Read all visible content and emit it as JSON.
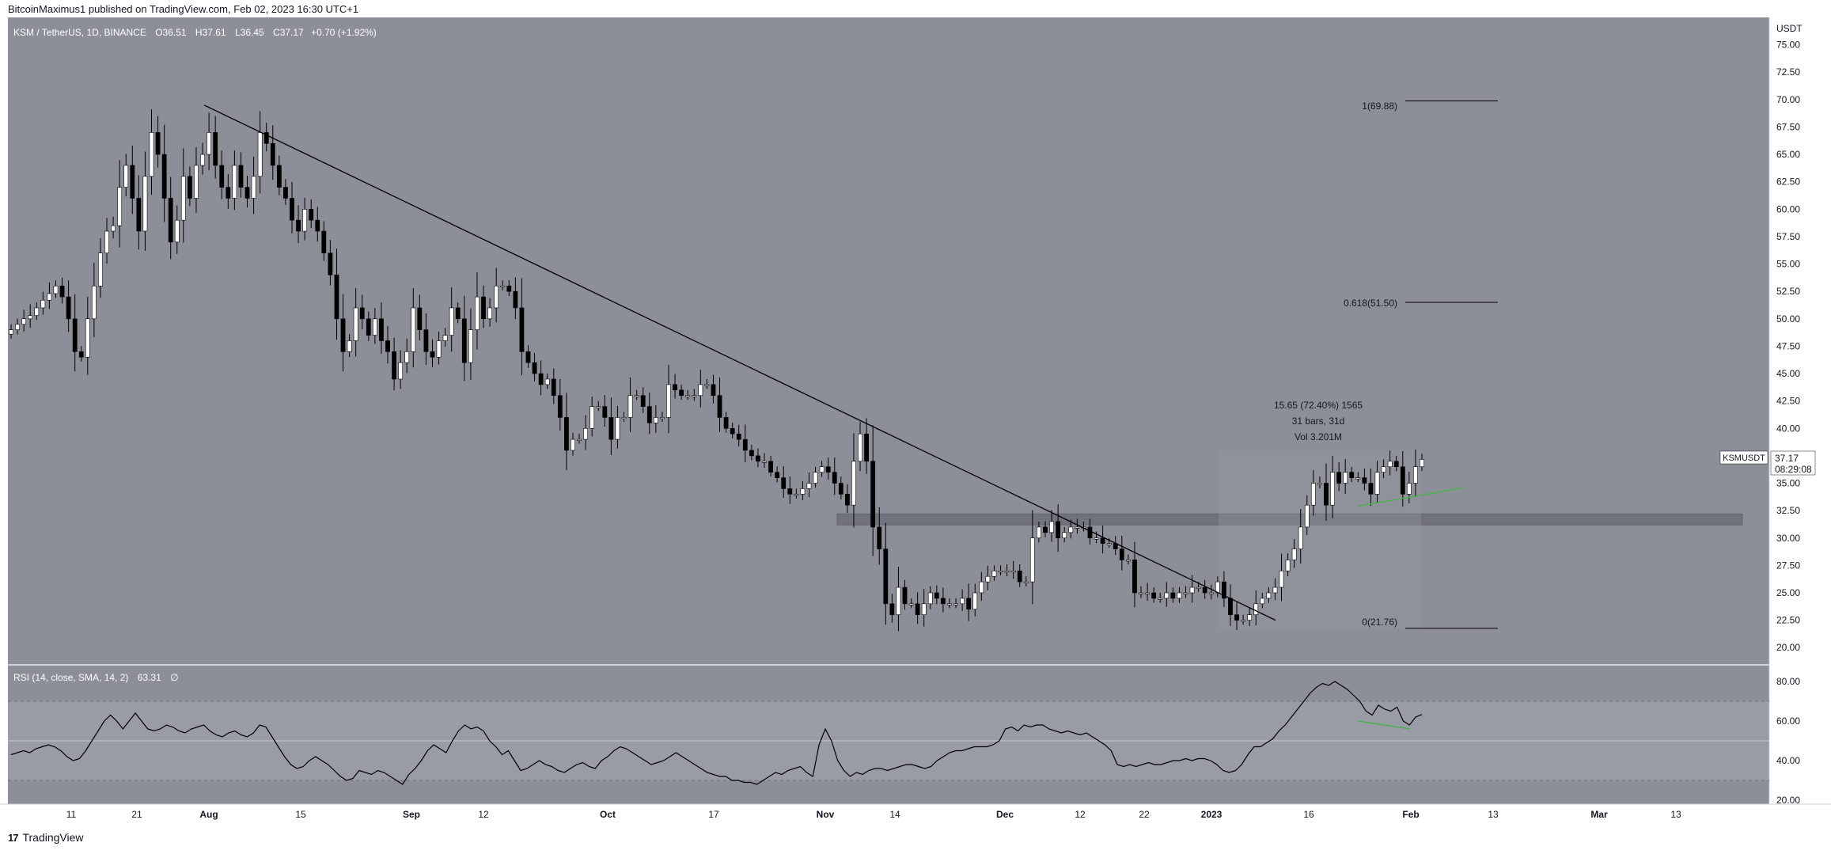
{
  "header": {
    "publisher": "BitcoinMaximus1 published on TradingView.com, Feb 02, 2023 16:30 UTC+1"
  },
  "legend": {
    "symbol": "KSM / TetherUS, 1D, BINANCE",
    "o_label": "O",
    "o": "36.51",
    "h_label": "H",
    "h": "37.61",
    "l_label": "L",
    "l": "36.45",
    "c_label": "C",
    "c": "37.17",
    "change": "+0.70 (+1.92%)"
  },
  "price_axis": {
    "currency": "USDT",
    "ticks": [
      "75.00",
      "72.50",
      "70.00",
      "67.50",
      "65.00",
      "62.50",
      "60.00",
      "57.50",
      "55.00",
      "52.50",
      "50.00",
      "47.50",
      "45.00",
      "42.50",
      "40.00",
      "35.00",
      "32.50",
      "30.00",
      "27.50",
      "25.00",
      "22.50",
      "20.00"
    ],
    "last_symbol": "KSMUSDT",
    "last_price": "37.17",
    "countdown": "08:29:08"
  },
  "rsi": {
    "label": "RSI (14, close, SMA, 14, 2)",
    "value": "63.31",
    "extra": "∅",
    "ticks": [
      "80.00",
      "60.00",
      "40.00",
      "20.00"
    ]
  },
  "time_axis": {
    "labels": [
      "11",
      "21",
      "Aug",
      "15",
      "Sep",
      "12",
      "Oct",
      "17",
      "Nov",
      "14",
      "Dec",
      "12",
      "22",
      "2023",
      "16",
      "Feb",
      "13",
      "Mar",
      "13"
    ]
  },
  "annotations": {
    "fib_1": "1(69.88)",
    "fib_0618": "0.618(51.50)",
    "fib_0": "0(21.76)",
    "measure_line1": "15.65 (72.40%) 1565",
    "measure_line2": "31 bars, 31d",
    "measure_line3": "Vol 3.201M"
  },
  "footer": {
    "brand": "TradingView",
    "mark": "17"
  },
  "colors": {
    "chart_bg": "#8d8f98",
    "rsi_band": "#9a9ca5",
    "candle_up": "#ffffff",
    "candle_down": "#000000",
    "divergence": "#4caf50"
  },
  "chart_data": {
    "type": "candlestick",
    "symbol": "KSM / TetherUS",
    "interval": "1D",
    "y_axis": {
      "ylim": [
        18.5,
        77.5
      ],
      "unit": "USDT"
    },
    "x_labels": [
      "11",
      "21",
      "Aug",
      "15",
      "Sep",
      "12",
      "Oct",
      "17",
      "Nov",
      "14",
      "Dec",
      "12",
      "22",
      "2023",
      "16",
      "Feb",
      "13",
      "Mar",
      "13"
    ],
    "close_series": [
      49,
      49.5,
      50,
      50.3,
      51,
      51.7,
      52.3,
      53,
      52,
      50,
      47,
      46.5,
      50,
      53,
      56,
      58,
      58.5,
      62,
      64,
      61,
      58,
      63,
      67,
      65,
      61,
      57,
      59,
      63,
      61,
      64,
      65,
      67,
      64,
      62,
      61,
      64,
      62,
      61,
      63,
      67,
      66,
      64,
      62,
      61,
      59,
      58,
      60,
      59,
      58,
      56,
      54,
      50,
      47,
      48,
      51,
      50,
      48.5,
      50,
      48,
      47,
      44.5,
      46,
      47,
      51,
      49,
      47,
      46.5,
      48,
      48.5,
      51,
      50,
      46,
      49,
      52,
      50,
      51,
      53,
      53,
      52.5,
      51,
      47,
      46,
      45,
      44,
      44.5,
      43,
      41,
      38,
      39,
      39,
      40,
      42,
      42,
      41,
      39,
      41,
      41,
      43,
      43,
      42,
      40.5,
      41,
      41,
      44,
      43.5,
      43,
      43,
      43,
      44,
      44,
      43,
      41,
      40,
      39.5,
      39,
      38,
      37.5,
      37,
      37,
      36,
      35.5,
      34.5,
      34,
      34,
      34.5,
      35,
      36,
      36.5,
      36,
      35,
      34,
      33,
      37,
      39.5,
      37,
      31,
      29,
      24,
      23,
      25.5,
      24,
      24,
      23,
      24,
      25,
      24.5,
      24,
      24,
      24,
      24.5,
      23.5,
      25,
      26,
      26.5,
      27,
      27,
      27,
      27,
      26,
      26,
      30,
      31,
      30.5,
      31.5,
      30,
      30.5,
      31,
      31,
      31,
      30,
      30,
      29.5,
      29.5,
      29,
      28,
      28,
      25,
      25,
      25,
      24.5,
      24.5,
      25,
      24.5,
      25,
      25,
      25.5,
      25.5,
      25,
      25,
      26,
      24.5,
      23,
      22.5,
      22.5,
      23,
      24,
      24.5,
      25,
      25.5,
      27,
      28,
      29,
      31,
      33,
      35,
      35,
      33,
      36,
      35,
      36,
      35.5,
      35.5,
      35,
      34,
      36,
      36.5,
      37,
      36.5,
      34,
      35,
      36.5,
      37.17
    ],
    "trendline": {
      "from": [
        69.5
      ],
      "to": [
        22.5
      ]
    },
    "horizontal_zone": [
      31.2,
      32.2
    ],
    "fibonacci": [
      {
        "level": "1",
        "value": 69.88
      },
      {
        "level": "0.618",
        "value": 51.5
      },
      {
        "level": "0",
        "value": 21.76
      }
    ],
    "measure": {
      "change": 15.65,
      "percent": 72.4,
      "bars": 31,
      "days": 31,
      "volume": "3.201M"
    },
    "rsi_series": [
      43,
      44,
      45,
      44,
      46,
      47,
      48,
      47,
      45,
      42,
      40,
      41,
      45,
      50,
      55,
      60,
      63,
      60,
      56,
      60,
      64,
      60,
      56,
      55,
      56,
      58,
      57,
      55,
      54,
      56,
      57,
      58,
      55,
      53,
      52,
      54,
      55,
      53,
      52,
      54,
      58,
      57,
      52,
      47,
      42,
      38,
      36,
      37,
      40,
      42,
      40,
      38,
      35,
      32,
      30,
      31,
      35,
      34,
      33,
      35,
      34,
      32,
      30,
      28,
      33,
      36,
      40,
      45,
      48,
      46,
      44,
      50,
      55,
      58,
      56,
      57,
      55,
      50,
      47,
      43,
      45,
      40,
      35,
      36,
      38,
      40,
      38,
      37,
      35,
      34,
      36,
      38,
      39,
      37,
      36,
      40,
      42,
      45,
      47,
      46,
      44,
      42,
      40,
      38,
      39,
      40,
      42,
      44,
      42,
      40,
      38,
      36,
      34,
      33,
      32,
      32,
      30,
      30,
      29,
      29,
      28,
      30,
      32,
      34,
      33,
      35,
      36,
      37,
      34,
      32,
      48,
      56,
      50,
      40,
      35,
      32,
      34,
      33,
      35,
      36,
      36,
      35,
      36,
      37,
      38,
      38,
      37,
      36,
      37,
      40,
      42,
      44,
      45,
      45,
      46,
      47,
      47,
      47,
      48,
      50,
      56,
      57,
      55,
      58,
      57,
      58,
      58,
      56,
      55,
      54,
      55,
      54,
      53,
      54,
      52,
      50,
      48,
      45,
      38,
      37,
      38,
      37,
      38,
      39,
      38,
      38,
      39,
      40,
      40,
      41,
      40,
      41,
      41,
      40,
      38,
      35,
      34,
      35,
      38,
      43,
      47,
      47,
      49,
      51,
      55,
      58,
      62,
      66,
      70,
      74,
      77,
      79,
      78,
      80,
      78,
      76,
      73,
      70,
      65,
      63,
      68,
      66,
      65,
      67,
      60,
      58,
      62,
      63.31
    ],
    "rsi_ylim": [
      18,
      88
    ],
    "rsi_levels": [
      70,
      50,
      30
    ]
  }
}
